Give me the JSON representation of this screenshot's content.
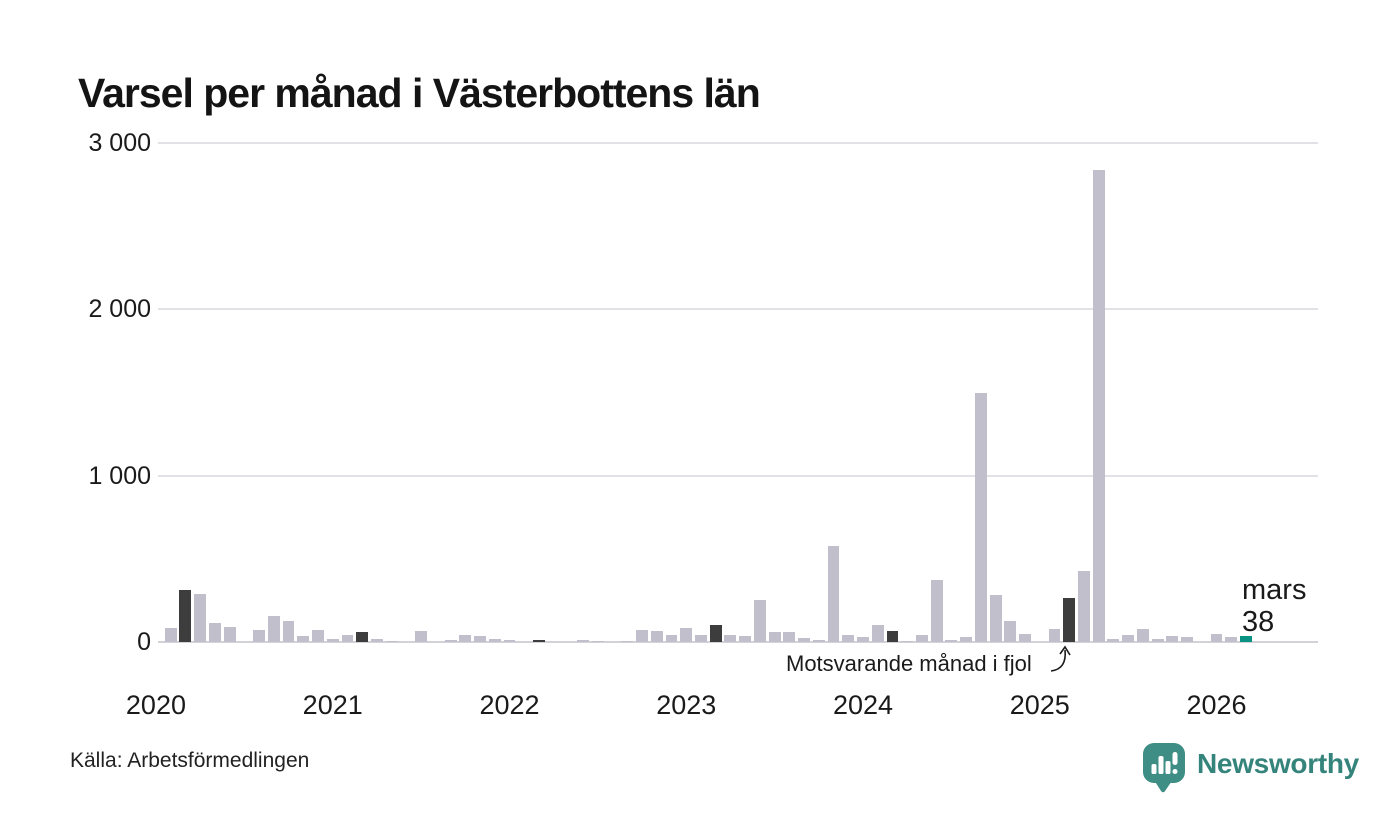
{
  "page": {
    "background": "#ffffff"
  },
  "chart_data": {
    "type": "bar",
    "title": "Varsel per månad i Västerbottens län",
    "x_start_month": "2020-01",
    "x_end_month": "2026-03",
    "months_per_bar": 1,
    "values": [
      0,
      85,
      310,
      290,
      115,
      90,
      0,
      75,
      155,
      125,
      35,
      70,
      20,
      45,
      60,
      20,
      5,
      0,
      65,
      0,
      10,
      40,
      35,
      20,
      10,
      0,
      10,
      0,
      0,
      10,
      8,
      0,
      8,
      70,
      65,
      45,
      85,
      40,
      100,
      40,
      35,
      255,
      60,
      60,
      25,
      10,
      580,
      40,
      30,
      100,
      65,
      5,
      40,
      370,
      15,
      30,
      1500,
      280,
      125,
      50,
      0,
      80,
      265,
      425,
      2840,
      20,
      40,
      80,
      20,
      35,
      30,
      0,
      50,
      30,
      38
    ],
    "dark_bar_indices": [
      2,
      14,
      26,
      38,
      50,
      62
    ],
    "highlight_bar_index": 74,
    "highlight_label": {
      "line1": "mars",
      "line2": "38"
    },
    "annotation": {
      "text": "Motsvarande månad i fjol",
      "target_index": 62
    },
    "ylim": [
      0,
      3000
    ],
    "yticks": [
      {
        "value": 0,
        "label": "0"
      },
      {
        "value": 1000,
        "label": "1 000"
      },
      {
        "value": 2000,
        "label": "2 000"
      },
      {
        "value": 3000,
        "label": "3 000"
      }
    ],
    "x_tick_labels": [
      "2020",
      "2021",
      "2022",
      "2023",
      "2024",
      "2025",
      "2026"
    ],
    "grid": "horizontal",
    "legend": "none",
    "colors": {
      "bar": "#c2bfcd",
      "dark": "#3d3d3d",
      "highlight": "#0a9283",
      "grid": "#e2e2e6",
      "baseline": "#d2d2d8"
    }
  },
  "footer": {
    "source": "Källa: Arbetsförmedlingen",
    "brand": "Newsworthy",
    "brand_color": "#35847c",
    "icon_color": "#3e8e85"
  }
}
